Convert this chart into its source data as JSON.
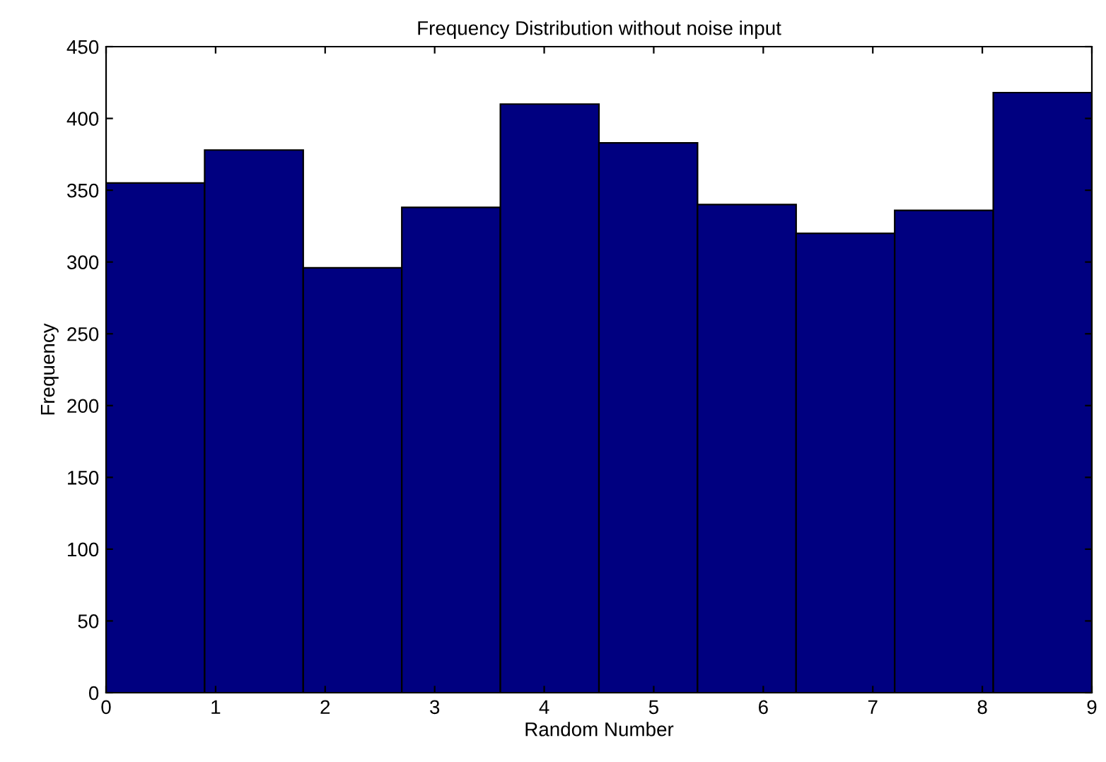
{
  "chart_data": {
    "type": "histogram",
    "title": "Frequency Distribution without noise input",
    "xlabel": "Random Number",
    "ylabel": "Frequency",
    "bins": [
      0,
      0.9,
      1.8,
      2.7,
      3.6,
      4.5,
      5.4,
      6.3,
      7.2,
      8.1,
      9
    ],
    "values": [
      355,
      378,
      296,
      338,
      410,
      383,
      340,
      320,
      336,
      418
    ],
    "color": "#000080",
    "xlim": [
      0,
      9
    ],
    "xticks": [
      0,
      1,
      2,
      3,
      4,
      5,
      6,
      7,
      8,
      9
    ],
    "ylim": [
      0,
      450
    ],
    "yticks": [
      0,
      50,
      100,
      150,
      200,
      250,
      300,
      350,
      400,
      450
    ],
    "grid": false,
    "legend": false
  }
}
